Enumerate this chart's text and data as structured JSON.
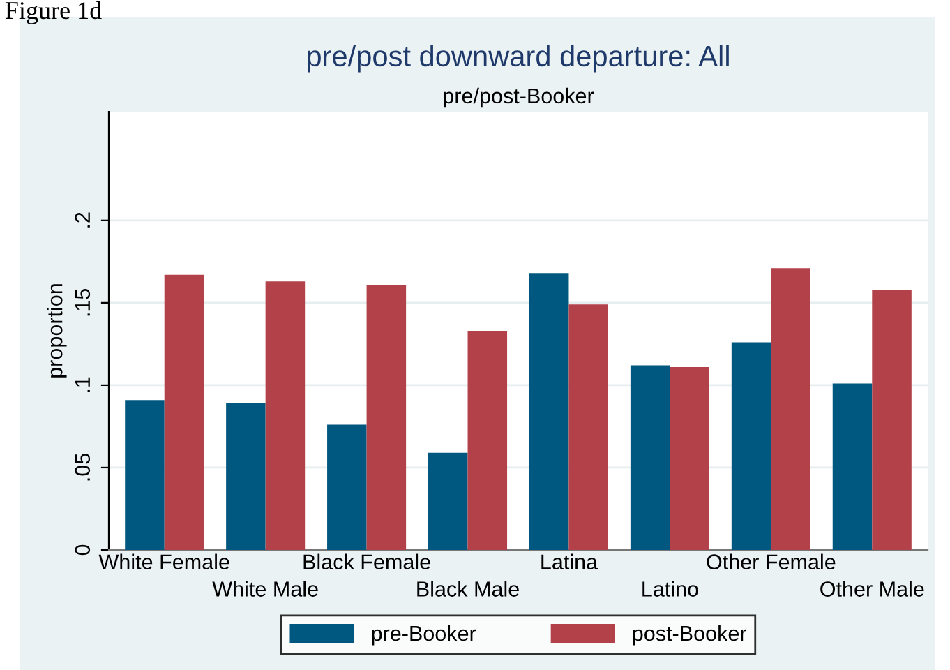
{
  "chart_data": {
    "type": "bar",
    "title": "pre/post downward departure: All",
    "subtitle": "pre/post-Booker",
    "ylabel": "proportion",
    "annotations": [
      "Figure 1d"
    ],
    "categories": [
      "White Female",
      "White Male",
      "Black Female",
      "Black Male",
      "Latina",
      "Latino",
      "Other Female",
      "Other Male"
    ],
    "series": [
      {
        "name": "pre-Booker",
        "color": "#00577f",
        "values": [
          0.091,
          0.089,
          0.076,
          0.059,
          0.168,
          0.112,
          0.126,
          0.101
        ]
      },
      {
        "name": "post-Booker",
        "color": "#b2414a",
        "values": [
          0.167,
          0.163,
          0.161,
          0.133,
          0.149,
          0.111,
          0.171,
          0.158
        ]
      }
    ],
    "ylim": [
      0,
      0.266
    ],
    "yticks": [
      {
        "value": 0,
        "label": "0"
      },
      {
        "value": 0.05,
        "label": ".05"
      },
      {
        "value": 0.1,
        "label": ".1"
      },
      {
        "value": 0.15,
        "label": ".15"
      },
      {
        "value": 0.2,
        "label": ".2"
      }
    ],
    "grid": "y",
    "legend": "bottom"
  }
}
